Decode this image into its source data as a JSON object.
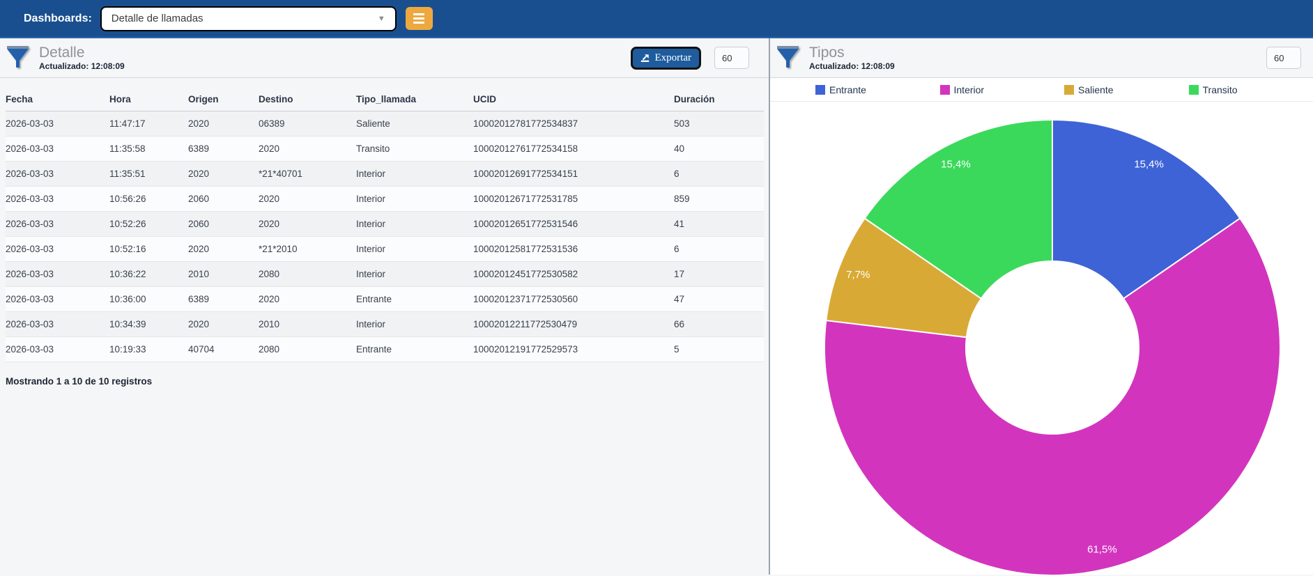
{
  "topbar": {
    "label": "Dashboards:",
    "selected_dashboard": "Detalle de llamadas",
    "icons": {
      "select_caret": "chevron-down",
      "menu": "hamburger"
    }
  },
  "left_panel": {
    "title": "Detalle",
    "updated_label": "Actualizado:",
    "updated_time": "12:08:09",
    "export_label": "Exportar",
    "refresh_value": "60",
    "footer": "Mostrando 1 a 10 de 10 registros",
    "table": {
      "columns": [
        "Fecha",
        "Hora",
        "Origen",
        "Destino",
        "Tipo_llamada",
        "UCID",
        "Duración"
      ],
      "rows": [
        [
          "2026-03-03",
          "11:47:17",
          "2020",
          "06389",
          "Saliente",
          "10002012781772534837",
          "503"
        ],
        [
          "2026-03-03",
          "11:35:58",
          "6389",
          "2020",
          "Transito",
          "10002012761772534158",
          "40"
        ],
        [
          "2026-03-03",
          "11:35:51",
          "2020",
          "*21*40701",
          "Interior",
          "10002012691772534151",
          "6"
        ],
        [
          "2026-03-03",
          "10:56:26",
          "2060",
          "2020",
          "Interior",
          "10002012671772531785",
          "859"
        ],
        [
          "2026-03-03",
          "10:52:26",
          "2060",
          "2020",
          "Interior",
          "10002012651772531546",
          "41"
        ],
        [
          "2026-03-03",
          "10:52:16",
          "2020",
          "*21*2010",
          "Interior",
          "10002012581772531536",
          "6"
        ],
        [
          "2026-03-03",
          "10:36:22",
          "2010",
          "2080",
          "Interior",
          "10002012451772530582",
          "17"
        ],
        [
          "2026-03-03",
          "10:36:00",
          "6389",
          "2020",
          "Entrante",
          "10002012371772530560",
          "47"
        ],
        [
          "2026-03-03",
          "10:34:39",
          "2020",
          "2010",
          "Interior",
          "10002012211772530479",
          "66"
        ],
        [
          "2026-03-03",
          "10:19:33",
          "40704",
          "2080",
          "Entrante",
          "10002012191772529573",
          "5"
        ]
      ]
    }
  },
  "right_panel": {
    "title": "Tipos",
    "updated_label": "Actualizado:",
    "updated_time": "12:08:09",
    "refresh_value": "60"
  },
  "chart_data": {
    "type": "pie",
    "subtype": "donut",
    "title": "Tipos",
    "labels": [
      "Entrante",
      "Interior",
      "Saliente",
      "Transito"
    ],
    "values_percent": [
      15.4,
      61.5,
      7.7,
      15.4
    ],
    "display_labels": [
      "15,4%",
      "61,5%",
      "7,7%",
      "15,4%"
    ],
    "colors": [
      "#3e63d7",
      "#d334be",
      "#d8aa35",
      "#3bd95b"
    ],
    "legend_position": "top",
    "start_angle_deg": 0,
    "clockwise": true,
    "cutout_ratio": 0.38
  },
  "colors": {
    "topbar_bg": "#1a4f8f",
    "menu_button_bg": "#eda93f",
    "export_button_bg": "#1e5c9e",
    "panel_bg": "#f5f6f8"
  }
}
